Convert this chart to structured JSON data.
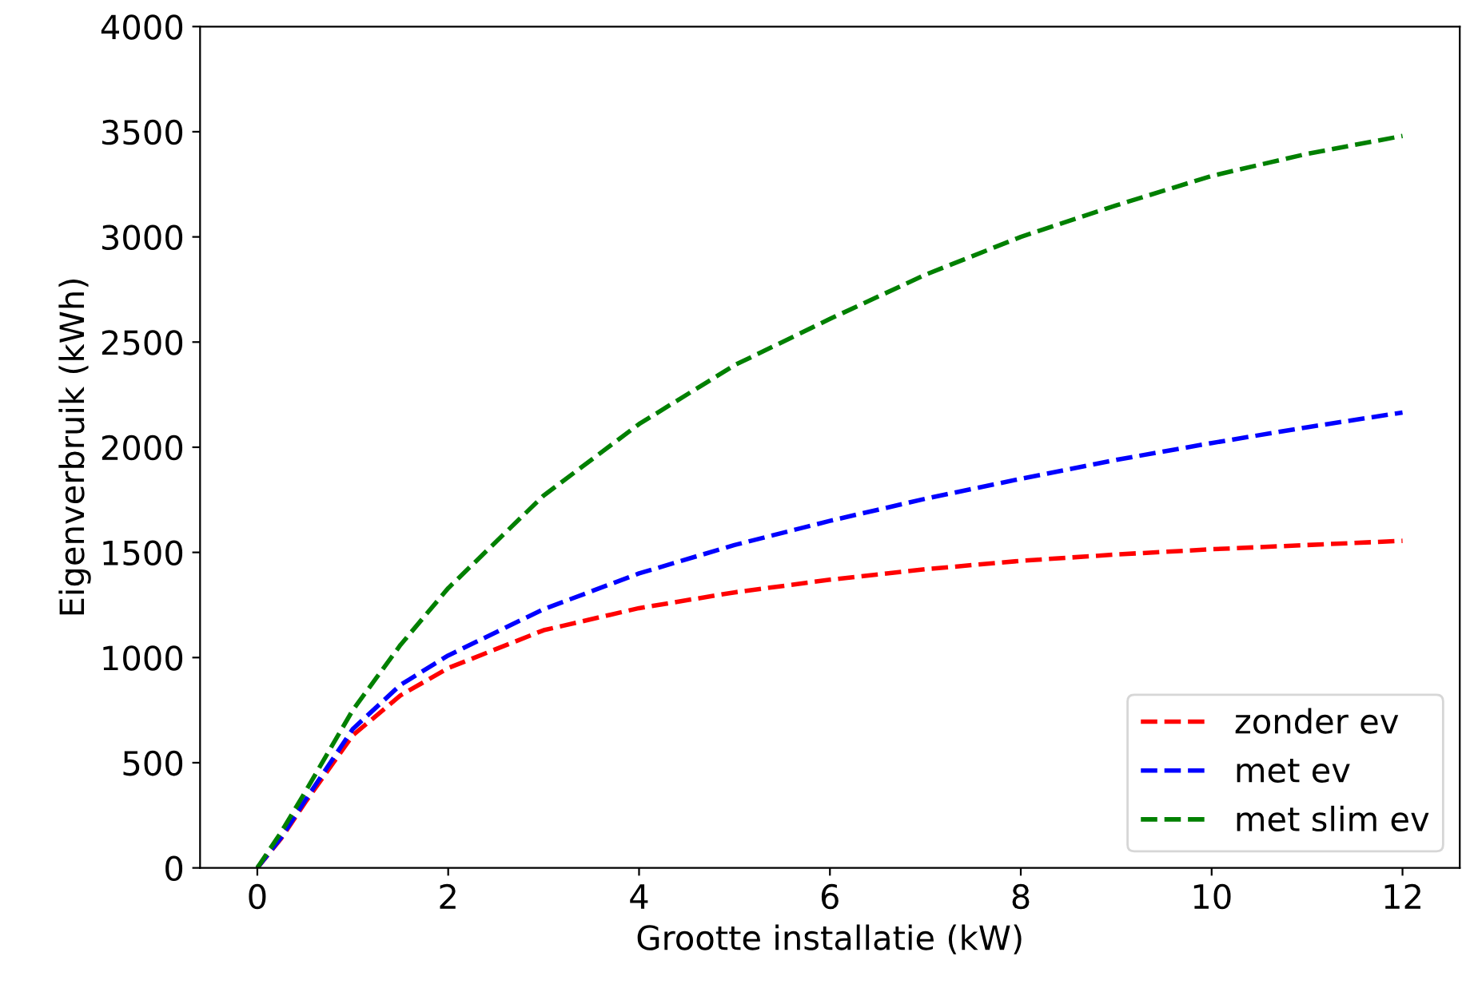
{
  "chart_data": {
    "type": "line",
    "xlabel": "Grootte installatie (kW)",
    "ylabel": "Eigenverbruik (kWh)",
    "x": [
      0,
      0.25,
      0.5,
      1,
      1.5,
      2,
      3,
      4,
      5,
      6,
      7,
      8,
      9,
      10,
      11,
      12
    ],
    "series": [
      {
        "name": "zonder ev",
        "color": "#ff0000",
        "values": [
          0,
          140,
          310,
          630,
          820,
          950,
          1130,
          1235,
          1310,
          1370,
          1420,
          1460,
          1490,
          1515,
          1535,
          1555
        ]
      },
      {
        "name": "met ev",
        "color": "#0000ff",
        "values": [
          0,
          145,
          320,
          660,
          870,
          1010,
          1230,
          1400,
          1535,
          1650,
          1755,
          1850,
          1940,
          2020,
          2095,
          2165
        ]
      },
      {
        "name": "met slim ev",
        "color": "#008000",
        "values": [
          0,
          170,
          360,
          750,
          1060,
          1330,
          1770,
          2110,
          2390,
          2610,
          2820,
          3000,
          3150,
          3290,
          3395,
          3480
        ]
      }
    ],
    "xlim": [
      -0.6,
      12.6
    ],
    "ylim": [
      0,
      4000
    ],
    "xticks": [
      0,
      2,
      4,
      6,
      8,
      10,
      12
    ],
    "yticks": [
      0,
      500,
      1000,
      1500,
      2000,
      2500,
      3000,
      3500,
      4000
    ],
    "grid": false,
    "legend": "lower right",
    "line_style": "dashed",
    "marker": "none"
  }
}
